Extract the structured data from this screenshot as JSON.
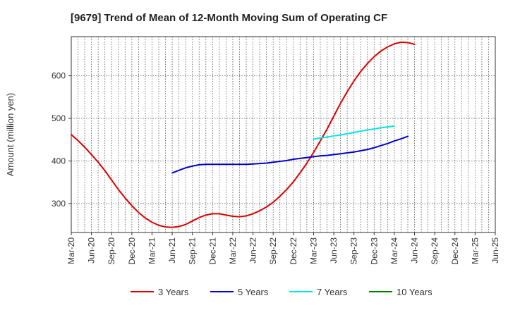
{
  "chart_data": {
    "type": "line",
    "title": "[9679]  Trend of Mean of 12-Month Moving Sum of Operating CF",
    "xlabel": "",
    "ylabel": "Amount (million yen)",
    "ylim": [
      232,
      692
    ],
    "yticks": [
      300,
      400,
      500,
      600
    ],
    "x_categories": [
      "Mar-20",
      "Jun-20",
      "Sep-20",
      "Dec-20",
      "Mar-21",
      "Jun-21",
      "Sep-21",
      "Dec-21",
      "Mar-22",
      "Jun-22",
      "Sep-22",
      "Dec-22",
      "Mar-23",
      "Jun-23",
      "Sep-23",
      "Dec-23",
      "Mar-24",
      "Jun-24",
      "Sep-24",
      "Dec-24",
      "Mar-25",
      "Jun-25"
    ],
    "grid": true,
    "legend_position": "bottom",
    "series": [
      {
        "name": "3 Years",
        "color": "#dd0000",
        "values": [
          [
            0,
            462
          ],
          [
            0.33,
            448
          ],
          [
            0.67,
            432
          ],
          [
            1,
            415
          ],
          [
            1.33,
            397
          ],
          [
            1.67,
            377
          ],
          [
            2,
            355
          ],
          [
            2.33,
            333
          ],
          [
            2.67,
            313
          ],
          [
            3,
            295
          ],
          [
            3.33,
            279
          ],
          [
            3.67,
            266
          ],
          [
            4,
            256
          ],
          [
            4.33,
            249
          ],
          [
            4.67,
            245
          ],
          [
            5,
            244
          ],
          [
            5.33,
            246
          ],
          [
            5.67,
            251
          ],
          [
            6,
            259
          ],
          [
            6.33,
            267
          ],
          [
            6.67,
            273
          ],
          [
            7,
            276
          ],
          [
            7.33,
            276
          ],
          [
            7.67,
            273
          ],
          [
            8,
            270
          ],
          [
            8.33,
            269
          ],
          [
            8.67,
            271
          ],
          [
            9,
            276
          ],
          [
            9.33,
            283
          ],
          [
            9.67,
            292
          ],
          [
            10,
            303
          ],
          [
            10.33,
            317
          ],
          [
            10.67,
            333
          ],
          [
            11,
            351
          ],
          [
            11.33,
            372
          ],
          [
            11.67,
            395
          ],
          [
            12,
            420
          ],
          [
            12.33,
            447
          ],
          [
            12.67,
            475
          ],
          [
            13,
            505
          ],
          [
            13.33,
            535
          ],
          [
            13.67,
            563
          ],
          [
            14,
            588
          ],
          [
            14.33,
            610
          ],
          [
            14.67,
            629
          ],
          [
            15,
            645
          ],
          [
            15.33,
            658
          ],
          [
            15.67,
            668
          ],
          [
            16,
            675
          ],
          [
            16.33,
            679
          ],
          [
            16.67,
            678
          ],
          [
            17,
            674
          ]
        ]
      },
      {
        "name": "5 Years",
        "color": "#0000cc",
        "values": [
          [
            5,
            372
          ],
          [
            5.33,
            378
          ],
          [
            5.67,
            384
          ],
          [
            6,
            388
          ],
          [
            6.33,
            391
          ],
          [
            6.67,
            392
          ],
          [
            7,
            392
          ],
          [
            7.33,
            392
          ],
          [
            7.67,
            392
          ],
          [
            8,
            392
          ],
          [
            8.33,
            392
          ],
          [
            8.67,
            392
          ],
          [
            9,
            393
          ],
          [
            9.33,
            394
          ],
          [
            9.67,
            395
          ],
          [
            10,
            397
          ],
          [
            10.33,
            399
          ],
          [
            10.67,
            401
          ],
          [
            11,
            404
          ],
          [
            11.33,
            406
          ],
          [
            11.67,
            408
          ],
          [
            12,
            410
          ],
          [
            12.33,
            412
          ],
          [
            12.67,
            413
          ],
          [
            13,
            415
          ],
          [
            13.33,
            417
          ],
          [
            13.67,
            419
          ],
          [
            14,
            421
          ],
          [
            14.33,
            424
          ],
          [
            14.67,
            427
          ],
          [
            15,
            431
          ],
          [
            15.33,
            436
          ],
          [
            15.67,
            441
          ],
          [
            16,
            447
          ],
          [
            16.33,
            452
          ],
          [
            16.67,
            458
          ]
        ]
      },
      {
        "name": "7 Years",
        "color": "#00e5e5",
        "values": [
          [
            12,
            451
          ],
          [
            12.33,
            454
          ],
          [
            12.67,
            456
          ],
          [
            13,
            459
          ],
          [
            13.33,
            461
          ],
          [
            13.67,
            464
          ],
          [
            14,
            467
          ],
          [
            14.33,
            470
          ],
          [
            14.67,
            473
          ],
          [
            15,
            475
          ],
          [
            15.33,
            478
          ],
          [
            15.67,
            480
          ],
          [
            16,
            482
          ]
        ]
      },
      {
        "name": "10 Years",
        "color": "#008000",
        "values": []
      }
    ]
  }
}
